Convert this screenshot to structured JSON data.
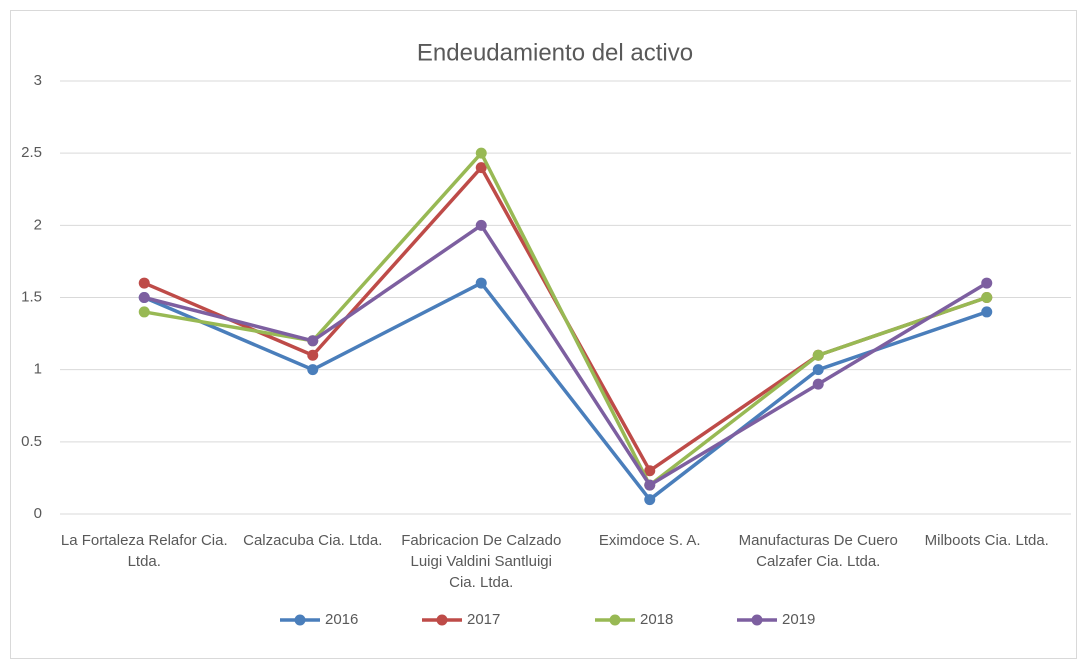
{
  "chart_data": {
    "type": "line",
    "title": "Endeudamiento del activo",
    "categories": [
      "La Fortaleza Relafor Cia. Ltda.",
      "Calzacuba Cia. Ltda.",
      "Fabricacion De Calzado Luigi Valdini Santluigi Cia. Ltda.",
      "Eximdoce S. A.",
      "Manufacturas De Cuero Calzafer Cia. Ltda.",
      "Milboots Cia. Ltda."
    ],
    "series": [
      {
        "name": "2016",
        "color": "#4a7ebb",
        "values": [
          1.5,
          1.0,
          1.6,
          0.1,
          1.0,
          1.4
        ]
      },
      {
        "name": "2017",
        "color": "#be4b48",
        "values": [
          1.6,
          1.1,
          2.4,
          0.3,
          1.1,
          1.5
        ]
      },
      {
        "name": "2018",
        "color": "#98b954",
        "values": [
          1.4,
          1.2,
          2.5,
          0.2,
          1.1,
          1.5
        ]
      },
      {
        "name": "2019",
        "color": "#7d5fa0",
        "values": [
          1.5,
          1.2,
          2.0,
          0.2,
          0.9,
          1.6
        ]
      }
    ],
    "ylim": [
      0,
      3
    ],
    "yticks": [
      0,
      0.5,
      1,
      1.5,
      2,
      2.5,
      3
    ],
    "grid": true,
    "legend": "bottom"
  }
}
